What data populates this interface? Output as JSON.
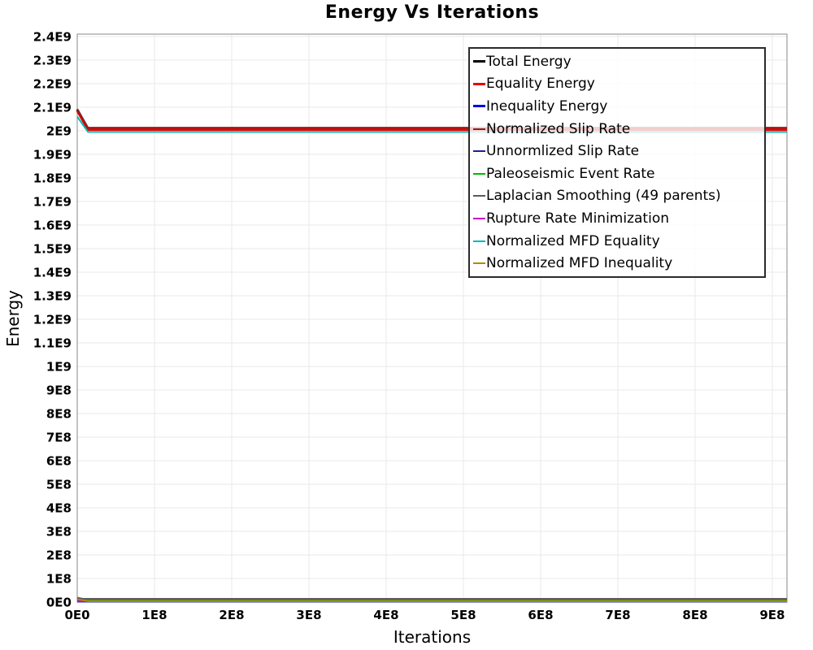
{
  "title": "Energy Vs Iterations",
  "x_axis_label": "Iterations",
  "y_axis_label": "Energy",
  "chart_data": {
    "type": "line",
    "title": "Energy Vs Iterations",
    "xlabel": "Iterations",
    "ylabel": "Energy",
    "xlim": [
      0,
      919000000
    ],
    "ylim": [
      0,
      2410000000
    ],
    "grid": true,
    "legend_position": "inside-top-right",
    "grid_color": "#e9e9e9",
    "axis_color": "#8a8a8a",
    "x_ticks": [
      {
        "label": "0E0",
        "value": 0
      },
      {
        "label": "1E8",
        "value": 100000000
      },
      {
        "label": "2E8",
        "value": 200000000
      },
      {
        "label": "3E8",
        "value": 300000000
      },
      {
        "label": "4E8",
        "value": 400000000
      },
      {
        "label": "5E8",
        "value": 500000000
      },
      {
        "label": "6E8",
        "value": 600000000
      },
      {
        "label": "7E8",
        "value": 700000000
      },
      {
        "label": "8E8",
        "value": 800000000
      },
      {
        "label": "9E8",
        "value": 900000000
      }
    ],
    "y_ticks": [
      {
        "label": "0E0",
        "value": 0
      },
      {
        "label": "1E8",
        "value": 100000000
      },
      {
        "label": "2E8",
        "value": 200000000
      },
      {
        "label": "3E8",
        "value": 300000000
      },
      {
        "label": "4E8",
        "value": 400000000
      },
      {
        "label": "5E8",
        "value": 500000000
      },
      {
        "label": "6E8",
        "value": 600000000
      },
      {
        "label": "7E8",
        "value": 700000000
      },
      {
        "label": "8E8",
        "value": 800000000
      },
      {
        "label": "9E8",
        "value": 900000000
      },
      {
        "label": "1E9",
        "value": 1000000000
      },
      {
        "label": "1.1E9",
        "value": 1100000000
      },
      {
        "label": "1.2E9",
        "value": 1200000000
      },
      {
        "label": "1.3E9",
        "value": 1300000000
      },
      {
        "label": "1.4E9",
        "value": 1400000000
      },
      {
        "label": "1.5E9",
        "value": 1500000000
      },
      {
        "label": "1.6E9",
        "value": 1600000000
      },
      {
        "label": "1.7E9",
        "value": 1700000000
      },
      {
        "label": "1.8E9",
        "value": 1800000000
      },
      {
        "label": "1.9E9",
        "value": 1900000000
      },
      {
        "label": "2E9",
        "value": 2000000000
      },
      {
        "label": "2.1E9",
        "value": 2100000000
      },
      {
        "label": "2.2E9",
        "value": 2200000000
      },
      {
        "label": "2.3E9",
        "value": 2300000000
      },
      {
        "label": "2.4E9",
        "value": 2400000000
      }
    ],
    "series": [
      {
        "name": "Total Energy",
        "color": "#000000",
        "width": 3,
        "points": [
          [
            0,
            2090000000
          ],
          [
            14000000,
            2008000000
          ],
          [
            919000000,
            2008000000
          ]
        ]
      },
      {
        "name": "Equality Energy",
        "color": "#e60000",
        "width": 3,
        "points": [
          [
            0,
            2085000000
          ],
          [
            14000000,
            2005000000
          ],
          [
            919000000,
            2005000000
          ]
        ]
      },
      {
        "name": "Inequality Energy",
        "color": "#0000e0",
        "width": 3,
        "points": [
          [
            0,
            4000000
          ],
          [
            919000000,
            4000000
          ]
        ]
      },
      {
        "name": "Normalized Slip Rate",
        "color": "#8b2020",
        "width": 2,
        "points": [
          [
            0,
            2092000000
          ],
          [
            14000000,
            2013000000
          ],
          [
            919000000,
            2013000000
          ]
        ]
      },
      {
        "name": "Unnormlized Slip Rate",
        "color": "#1f1f8f",
        "width": 2,
        "points": [
          [
            0,
            4000000
          ],
          [
            919000000,
            4000000
          ]
        ]
      },
      {
        "name": "Paleoseismic Event Rate",
        "color": "#00b800",
        "width": 2,
        "points": [
          [
            0,
            19000000
          ],
          [
            14000000,
            9000000
          ],
          [
            919000000,
            9000000
          ]
        ]
      },
      {
        "name": "Laplacian Smoothing (49 parents)",
        "color": "#5a5a5a",
        "width": 2,
        "points": [
          [
            0,
            14000000
          ],
          [
            919000000,
            14000000
          ]
        ]
      },
      {
        "name": "Rupture Rate Minimization",
        "color": "#cc00cc",
        "width": 2,
        "points": [
          [
            0,
            4000000
          ],
          [
            919000000,
            4000000
          ]
        ]
      },
      {
        "name": "Normalized MFD Equality",
        "color": "#00b8b8",
        "width": 2,
        "points": [
          [
            0,
            2060000000
          ],
          [
            14000000,
            1995000000
          ],
          [
            919000000,
            1995000000
          ]
        ]
      },
      {
        "name": "Normalized MFD Inequality",
        "color": "#b8860b",
        "width": 2,
        "points": [
          [
            0,
            12000000
          ],
          [
            14000000,
            4000000
          ],
          [
            919000000,
            4000000
          ]
        ]
      }
    ]
  }
}
